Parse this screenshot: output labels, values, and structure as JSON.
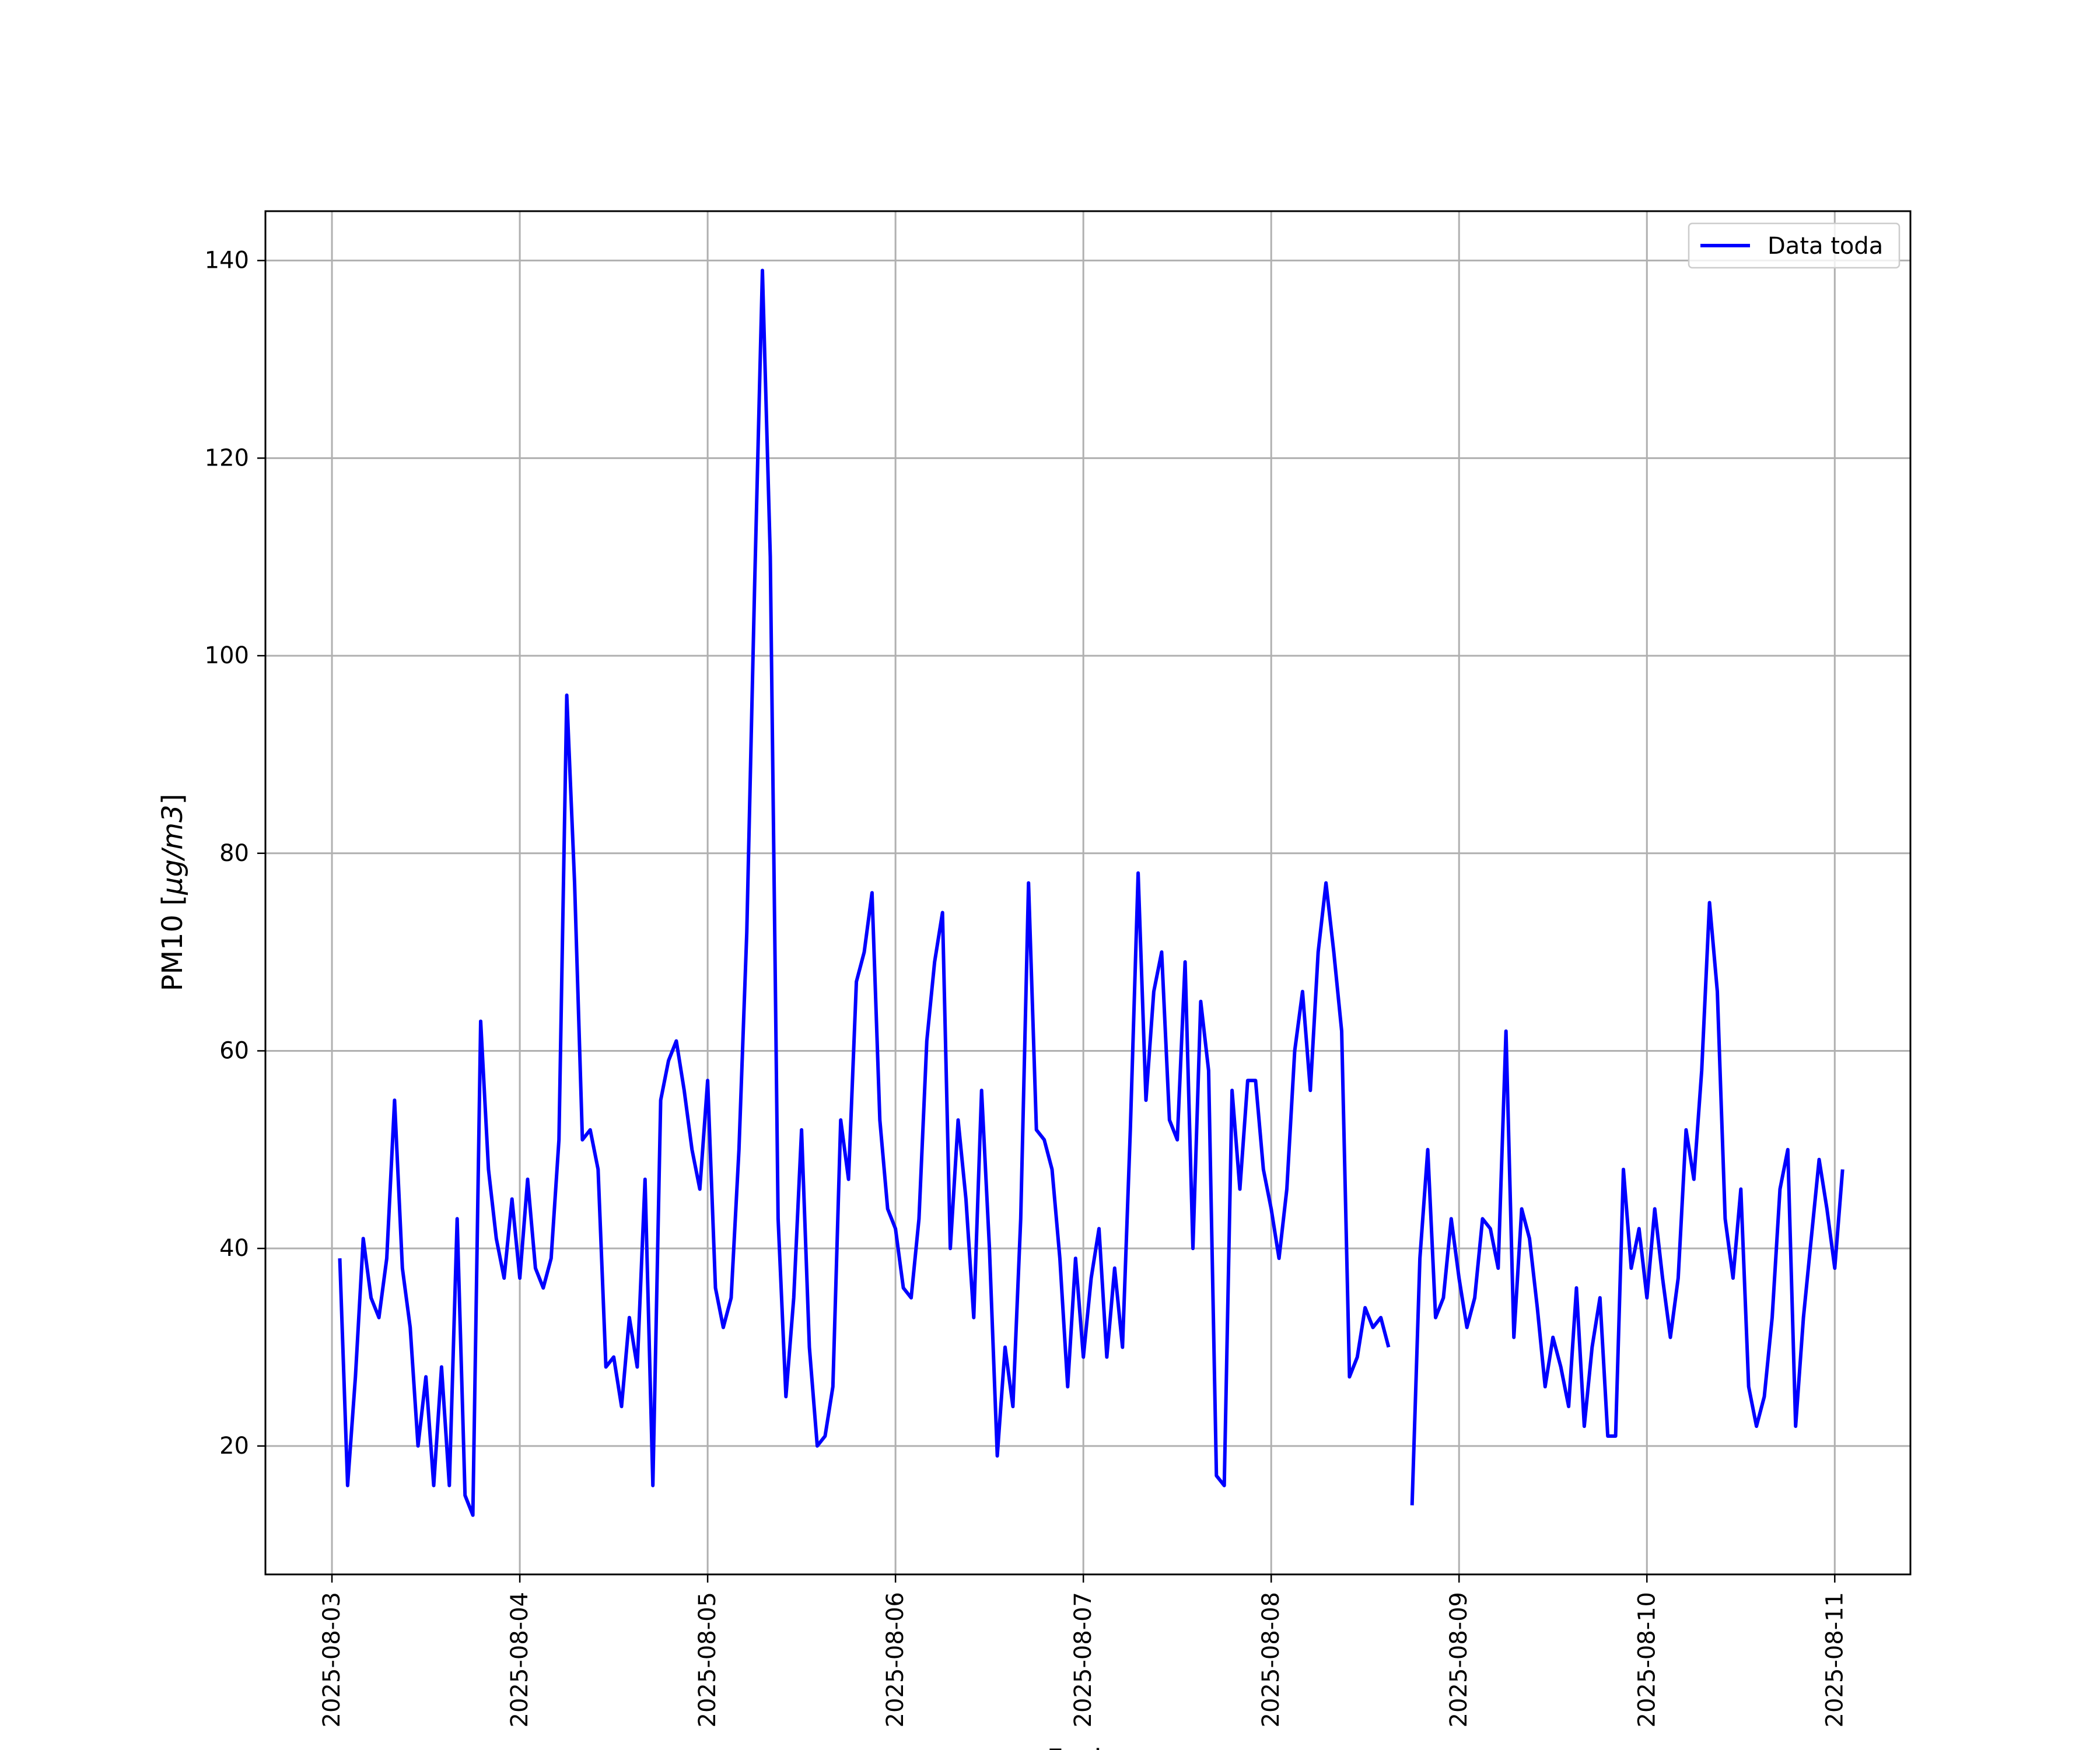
{
  "chart_data": {
    "type": "line",
    "xlabel": "Fecha",
    "ylabel_prefix": "PM10 [",
    "ylabel_unit": "μg/m3",
    "ylabel_suffix": "]",
    "x_ticks": [
      "2025-08-03",
      "2025-08-04",
      "2025-08-05",
      "2025-08-06",
      "2025-08-07",
      "2025-08-08",
      "2025-08-09",
      "2025-08-10",
      "2025-08-11"
    ],
    "y_ticks": [
      20,
      40,
      60,
      80,
      100,
      120,
      140
    ],
    "ylim": [
      7,
      145
    ],
    "xlim": [
      "2025-08-02 15:30",
      "2025-08-11 09:40"
    ],
    "grid": true,
    "legend_position": "upper right",
    "series": [
      {
        "name": "Data toda",
        "color": "#0000ff",
        "points": [
          [
            "2025-08-03 01:00",
            39
          ],
          [
            "2025-08-03 02:00",
            16
          ],
          [
            "2025-08-03 03:00",
            27
          ],
          [
            "2025-08-03 04:00",
            41
          ],
          [
            "2025-08-03 05:00",
            35
          ],
          [
            "2025-08-03 06:00",
            33
          ],
          [
            "2025-08-03 07:00",
            39
          ],
          [
            "2025-08-03 08:00",
            55
          ],
          [
            "2025-08-03 09:00",
            38
          ],
          [
            "2025-08-03 10:00",
            32
          ],
          [
            "2025-08-03 11:00",
            20
          ],
          [
            "2025-08-03 12:00",
            27
          ],
          [
            "2025-08-03 13:00",
            16
          ],
          [
            "2025-08-03 14:00",
            28
          ],
          [
            "2025-08-03 15:00",
            16
          ],
          [
            "2025-08-03 16:00",
            43
          ],
          [
            "2025-08-03 17:00",
            15
          ],
          [
            "2025-08-03 18:00",
            13
          ],
          [
            "2025-08-03 19:00",
            63
          ],
          [
            "2025-08-03 20:00",
            48
          ],
          [
            "2025-08-03 21:00",
            41
          ],
          [
            "2025-08-03 22:00",
            37
          ],
          [
            "2025-08-03 23:00",
            45
          ],
          [
            "2025-08-04 00:00",
            37
          ],
          [
            "2025-08-04 01:00",
            47
          ],
          [
            "2025-08-04 02:00",
            38
          ],
          [
            "2025-08-04 03:00",
            36
          ],
          [
            "2025-08-04 04:00",
            39
          ],
          [
            "2025-08-04 05:00",
            51
          ],
          [
            "2025-08-04 06:00",
            96
          ],
          [
            "2025-08-04 07:00",
            77
          ],
          [
            "2025-08-04 08:00",
            51
          ],
          [
            "2025-08-04 09:00",
            52
          ],
          [
            "2025-08-04 10:00",
            48
          ],
          [
            "2025-08-04 11:00",
            28
          ],
          [
            "2025-08-04 12:00",
            29
          ],
          [
            "2025-08-04 13:00",
            24
          ],
          [
            "2025-08-04 14:00",
            33
          ],
          [
            "2025-08-04 15:00",
            28
          ],
          [
            "2025-08-04 16:00",
            47
          ],
          [
            "2025-08-04 17:00",
            16
          ],
          [
            "2025-08-04 18:00",
            55
          ],
          [
            "2025-08-04 19:00",
            59
          ],
          [
            "2025-08-04 20:00",
            61
          ],
          [
            "2025-08-04 21:00",
            56
          ],
          [
            "2025-08-04 22:00",
            50
          ],
          [
            "2025-08-04 23:00",
            46
          ],
          [
            "2025-08-05 00:00",
            57
          ],
          [
            "2025-08-05 01:00",
            36
          ],
          [
            "2025-08-05 02:00",
            32
          ],
          [
            "2025-08-05 03:00",
            35
          ],
          [
            "2025-08-05 04:00",
            50
          ],
          [
            "2025-08-05 05:00",
            72
          ],
          [
            "2025-08-05 06:00",
            107
          ],
          [
            "2025-08-05 07:00",
            139
          ],
          [
            "2025-08-05 08:00",
            110
          ],
          [
            "2025-08-05 09:00",
            43
          ],
          [
            "2025-08-05 10:00",
            25
          ],
          [
            "2025-08-05 11:00",
            35
          ],
          [
            "2025-08-05 12:00",
            52
          ],
          [
            "2025-08-05 13:00",
            30
          ],
          [
            "2025-08-05 14:00",
            20
          ],
          [
            "2025-08-05 15:00",
            21
          ],
          [
            "2025-08-05 16:00",
            26
          ],
          [
            "2025-08-05 17:00",
            53
          ],
          [
            "2025-08-05 18:00",
            47
          ],
          [
            "2025-08-05 19:00",
            67
          ],
          [
            "2025-08-05 20:00",
            70
          ],
          [
            "2025-08-05 21:00",
            76
          ],
          [
            "2025-08-05 22:00",
            53
          ],
          [
            "2025-08-05 23:00",
            44
          ],
          [
            "2025-08-06 00:00",
            42
          ],
          [
            "2025-08-06 01:00",
            36
          ],
          [
            "2025-08-06 02:00",
            35
          ],
          [
            "2025-08-06 03:00",
            43
          ],
          [
            "2025-08-06 04:00",
            61
          ],
          [
            "2025-08-06 05:00",
            69
          ],
          [
            "2025-08-06 06:00",
            74
          ],
          [
            "2025-08-06 07:00",
            40
          ],
          [
            "2025-08-06 08:00",
            53
          ],
          [
            "2025-08-06 09:00",
            45
          ],
          [
            "2025-08-06 10:00",
            33
          ],
          [
            "2025-08-06 11:00",
            56
          ],
          [
            "2025-08-06 12:00",
            40
          ],
          [
            "2025-08-06 13:00",
            19
          ],
          [
            "2025-08-06 14:00",
            30
          ],
          [
            "2025-08-06 15:00",
            24
          ],
          [
            "2025-08-06 16:00",
            43
          ],
          [
            "2025-08-06 17:00",
            77
          ],
          [
            "2025-08-06 18:00",
            52
          ],
          [
            "2025-08-06 19:00",
            51
          ],
          [
            "2025-08-06 20:00",
            48
          ],
          [
            "2025-08-06 21:00",
            39
          ],
          [
            "2025-08-06 22:00",
            26
          ],
          [
            "2025-08-06 23:00",
            39
          ],
          [
            "2025-08-07 00:00",
            29
          ],
          [
            "2025-08-07 01:00",
            37
          ],
          [
            "2025-08-07 02:00",
            42
          ],
          [
            "2025-08-07 03:00",
            29
          ],
          [
            "2025-08-07 04:00",
            38
          ],
          [
            "2025-08-07 05:00",
            30
          ],
          [
            "2025-08-07 06:00",
            52
          ],
          [
            "2025-08-07 07:00",
            78
          ],
          [
            "2025-08-07 08:00",
            55
          ],
          [
            "2025-08-07 09:00",
            66
          ],
          [
            "2025-08-07 10:00",
            70
          ],
          [
            "2025-08-07 11:00",
            53
          ],
          [
            "2025-08-07 12:00",
            51
          ],
          [
            "2025-08-07 13:00",
            69
          ],
          [
            "2025-08-07 14:00",
            40
          ],
          [
            "2025-08-07 15:00",
            65
          ],
          [
            "2025-08-07 16:00",
            58
          ],
          [
            "2025-08-07 17:00",
            17
          ],
          [
            "2025-08-07 18:00",
            16
          ],
          [
            "2025-08-07 19:00",
            56
          ],
          [
            "2025-08-07 20:00",
            46
          ],
          [
            "2025-08-07 21:00",
            57
          ],
          [
            "2025-08-07 22:00",
            57
          ],
          [
            "2025-08-07 23:00",
            48
          ],
          [
            "2025-08-08 00:00",
            44
          ],
          [
            "2025-08-08 01:00",
            39
          ],
          [
            "2025-08-08 02:00",
            46
          ],
          [
            "2025-08-08 03:00",
            60
          ],
          [
            "2025-08-08 04:00",
            66
          ],
          [
            "2025-08-08 05:00",
            56
          ],
          [
            "2025-08-08 06:00",
            70
          ],
          [
            "2025-08-08 07:00",
            77
          ],
          [
            "2025-08-08 08:00",
            70
          ],
          [
            "2025-08-08 09:00",
            62
          ],
          [
            "2025-08-08 10:00",
            27
          ],
          [
            "2025-08-08 11:00",
            29
          ],
          [
            "2025-08-08 12:00",
            34
          ],
          [
            "2025-08-08 13:00",
            32
          ],
          [
            "2025-08-08 14:00",
            33
          ],
          [
            "2025-08-08 15:00",
            30
          ],
          [
            "2025-08-08 16:00",
            null
          ],
          [
            "2025-08-08 17:00",
            null
          ],
          [
            "2025-08-08 18:00",
            14
          ],
          [
            "2025-08-08 19:00",
            39
          ],
          [
            "2025-08-08 20:00",
            50
          ],
          [
            "2025-08-08 21:00",
            33
          ],
          [
            "2025-08-08 22:00",
            35
          ],
          [
            "2025-08-08 23:00",
            43
          ],
          [
            "2025-08-09 00:00",
            37
          ],
          [
            "2025-08-09 01:00",
            32
          ],
          [
            "2025-08-09 02:00",
            35
          ],
          [
            "2025-08-09 03:00",
            43
          ],
          [
            "2025-08-09 04:00",
            42
          ],
          [
            "2025-08-09 05:00",
            38
          ],
          [
            "2025-08-09 06:00",
            62
          ],
          [
            "2025-08-09 07:00",
            31
          ],
          [
            "2025-08-09 08:00",
            44
          ],
          [
            "2025-08-09 09:00",
            41
          ],
          [
            "2025-08-09 10:00",
            34
          ],
          [
            "2025-08-09 11:00",
            26
          ],
          [
            "2025-08-09 12:00",
            31
          ],
          [
            "2025-08-09 13:00",
            28
          ],
          [
            "2025-08-09 14:00",
            24
          ],
          [
            "2025-08-09 15:00",
            36
          ],
          [
            "2025-08-09 16:00",
            22
          ],
          [
            "2025-08-09 17:00",
            30
          ],
          [
            "2025-08-09 18:00",
            35
          ],
          [
            "2025-08-09 19:00",
            21
          ],
          [
            "2025-08-09 20:00",
            21
          ],
          [
            "2025-08-09 21:00",
            48
          ],
          [
            "2025-08-09 22:00",
            38
          ],
          [
            "2025-08-09 23:00",
            42
          ],
          [
            "2025-08-10 00:00",
            35
          ],
          [
            "2025-08-10 01:00",
            44
          ],
          [
            "2025-08-10 02:00",
            37
          ],
          [
            "2025-08-10 03:00",
            31
          ],
          [
            "2025-08-10 04:00",
            37
          ],
          [
            "2025-08-10 05:00",
            52
          ],
          [
            "2025-08-10 06:00",
            47
          ],
          [
            "2025-08-10 07:00",
            58
          ],
          [
            "2025-08-10 08:00",
            75
          ],
          [
            "2025-08-10 09:00",
            66
          ],
          [
            "2025-08-10 10:00",
            43
          ],
          [
            "2025-08-10 11:00",
            37
          ],
          [
            "2025-08-10 12:00",
            46
          ],
          [
            "2025-08-10 13:00",
            26
          ],
          [
            "2025-08-10 14:00",
            22
          ],
          [
            "2025-08-10 15:00",
            25
          ],
          [
            "2025-08-10 16:00",
            33
          ],
          [
            "2025-08-10 17:00",
            46
          ],
          [
            "2025-08-10 18:00",
            50
          ],
          [
            "2025-08-10 19:00",
            22
          ],
          [
            "2025-08-10 20:00",
            33
          ],
          [
            "2025-08-10 21:00",
            41
          ],
          [
            "2025-08-10 22:00",
            49
          ],
          [
            "2025-08-10 23:00",
            44
          ],
          [
            "2025-08-11 00:00",
            38
          ],
          [
            "2025-08-11 01:00",
            48
          ]
        ]
      }
    ]
  }
}
